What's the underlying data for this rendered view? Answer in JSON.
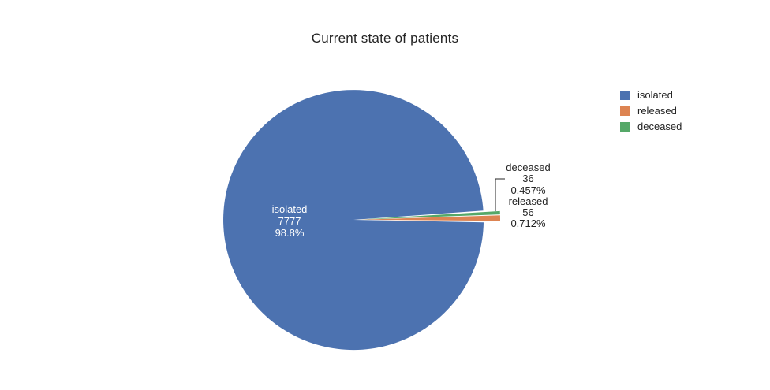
{
  "title": "Current state of patients",
  "chart_data": {
    "type": "pie",
    "title": "Current state of patients",
    "labels": [
      "isolated",
      "released",
      "deceased"
    ],
    "values": [
      7777,
      56,
      36
    ],
    "percents": [
      "98.8%",
      "0.712%",
      "0.457%"
    ],
    "colors": [
      "#4C72B0",
      "#DD8452",
      "#55A868"
    ],
    "legend_position": "right",
    "text_display": "label+value+percent",
    "inside_text_color": "#ffffff",
    "outside_text_color": "#242424"
  },
  "legend": {
    "items": [
      {
        "label": "isolated",
        "color": "#4C72B0"
      },
      {
        "label": "released",
        "color": "#DD8452"
      },
      {
        "label": "deceased",
        "color": "#55A868"
      }
    ]
  },
  "slice_texts": {
    "isolated": {
      "line1": "isolated",
      "line2": "7777",
      "line3": "98.8%"
    },
    "deceased": {
      "line1": "deceased",
      "line2": "36",
      "line3": "0.457%"
    },
    "released": {
      "line1": "released",
      "line2": "56",
      "line3": "0.712%"
    }
  }
}
